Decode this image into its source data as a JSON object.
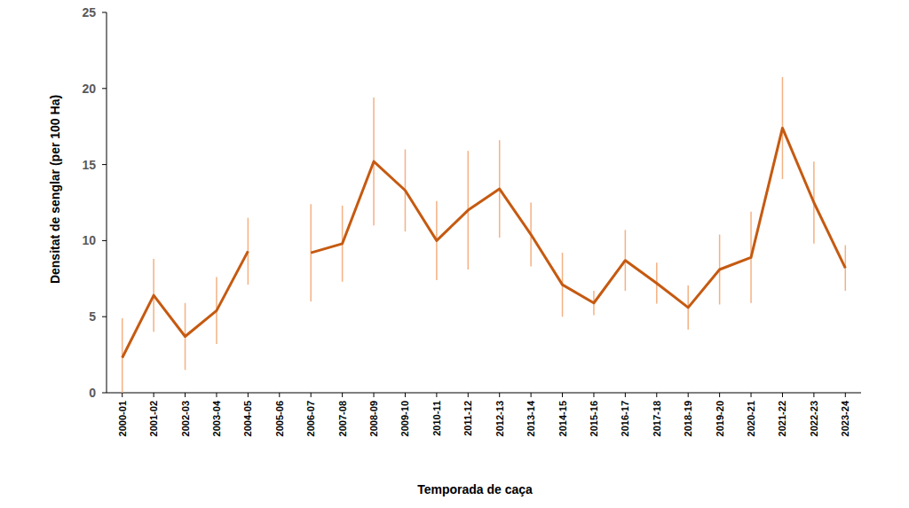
{
  "chart_data": {
    "type": "line",
    "x_label": "Temporada de caça",
    "y_label": "Densitat de senglar (per 100 Ha)",
    "categories": [
      "2000-01",
      "2001-02",
      "2002-03",
      "2003-04",
      "2004-05",
      "2005-06",
      "2006-07",
      "2007-08",
      "2008-09",
      "2009-10",
      "2010-11",
      "2011-12",
      "2012-13",
      "2013-14",
      "2014-15",
      "2015-16",
      "2016-17",
      "2017-18",
      "2018-19",
      "2019-20",
      "2020-21",
      "2021-22",
      "2022-23",
      "2023-24"
    ],
    "values": [
      2.3,
      6.4,
      3.7,
      5.4,
      9.3,
      null,
      9.2,
      9.8,
      15.2,
      13.3,
      10.0,
      12.0,
      13.4,
      10.4,
      7.1,
      5.9,
      8.7,
      7.2,
      5.6,
      8.1,
      8.9,
      17.4,
      12.5,
      8.2
    ],
    "errors": [
      2.6,
      2.4,
      2.2,
      2.2,
      2.2,
      null,
      3.2,
      2.5,
      4.2,
      2.7,
      2.6,
      3.9,
      3.2,
      2.1,
      2.1,
      0.8,
      2.0,
      1.35,
      1.45,
      2.3,
      3.0,
      3.35,
      2.7,
      1.5
    ],
    "color": "#c55a11",
    "ylim": [
      0,
      25
    ],
    "yticks": [
      0,
      5,
      10,
      15,
      20,
      25
    ],
    "grid": false
  }
}
